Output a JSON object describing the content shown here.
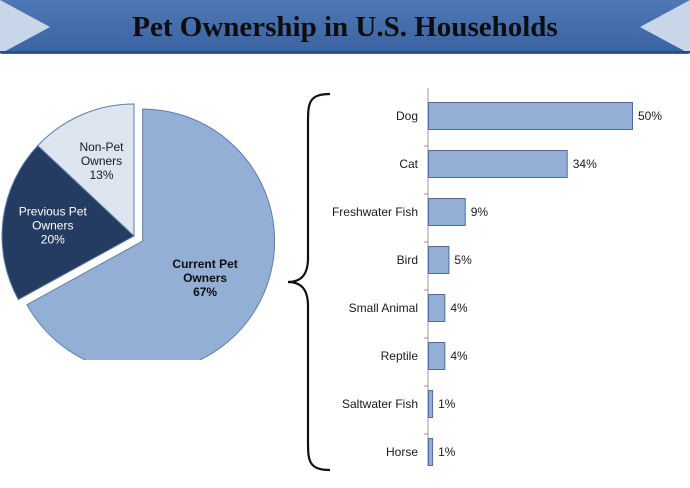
{
  "title": "Pet Ownership in U.S. Households",
  "colors": {
    "banner_top": "#4e79b5",
    "banner_bottom": "#3a62a0",
    "banner_arrow": "#c9d6ea",
    "current_owners": "#94afd6",
    "previous_owners": "#243c61",
    "non_owners": "#dde5f0",
    "bar_fill": "#94afd6",
    "bar_stroke": "#4c6d9c",
    "brace": "#111111"
  },
  "chart_data": [
    {
      "type": "pie",
      "title": "",
      "slices": [
        {
          "label": [
            "Current Pet",
            "Owners"
          ],
          "value": 67,
          "value_label": "67%",
          "color": "#94afd6",
          "text_color": "#0d0d0d",
          "bold": true,
          "exploded": true
        },
        {
          "label": [
            "Previous Pet",
            "Owners"
          ],
          "value": 20,
          "value_label": "20%",
          "color": "#243c61",
          "text_color": "#ffffff",
          "bold": false,
          "exploded": false
        },
        {
          "label": [
            "Non-Pet",
            "Owners"
          ],
          "value": 13,
          "value_label": "13%",
          "color": "#dde5f0",
          "text_color": "#1a1a1a",
          "bold": false,
          "exploded": false
        }
      ]
    },
    {
      "type": "bar",
      "orientation": "horizontal",
      "title": "",
      "categories": [
        "Dog",
        "Cat",
        "Freshwater Fish",
        "Bird",
        "Small Animal",
        "Reptile",
        "Saltwater Fish",
        "Horse"
      ],
      "values": [
        50,
        34,
        9,
        5,
        4,
        4,
        1,
        1
      ],
      "value_labels": [
        "50%",
        "34%",
        "9%",
        "5%",
        "4%",
        "4%",
        "1%",
        "1%"
      ],
      "unit": "%",
      "xlim": [
        0,
        50
      ],
      "grid": false
    }
  ]
}
